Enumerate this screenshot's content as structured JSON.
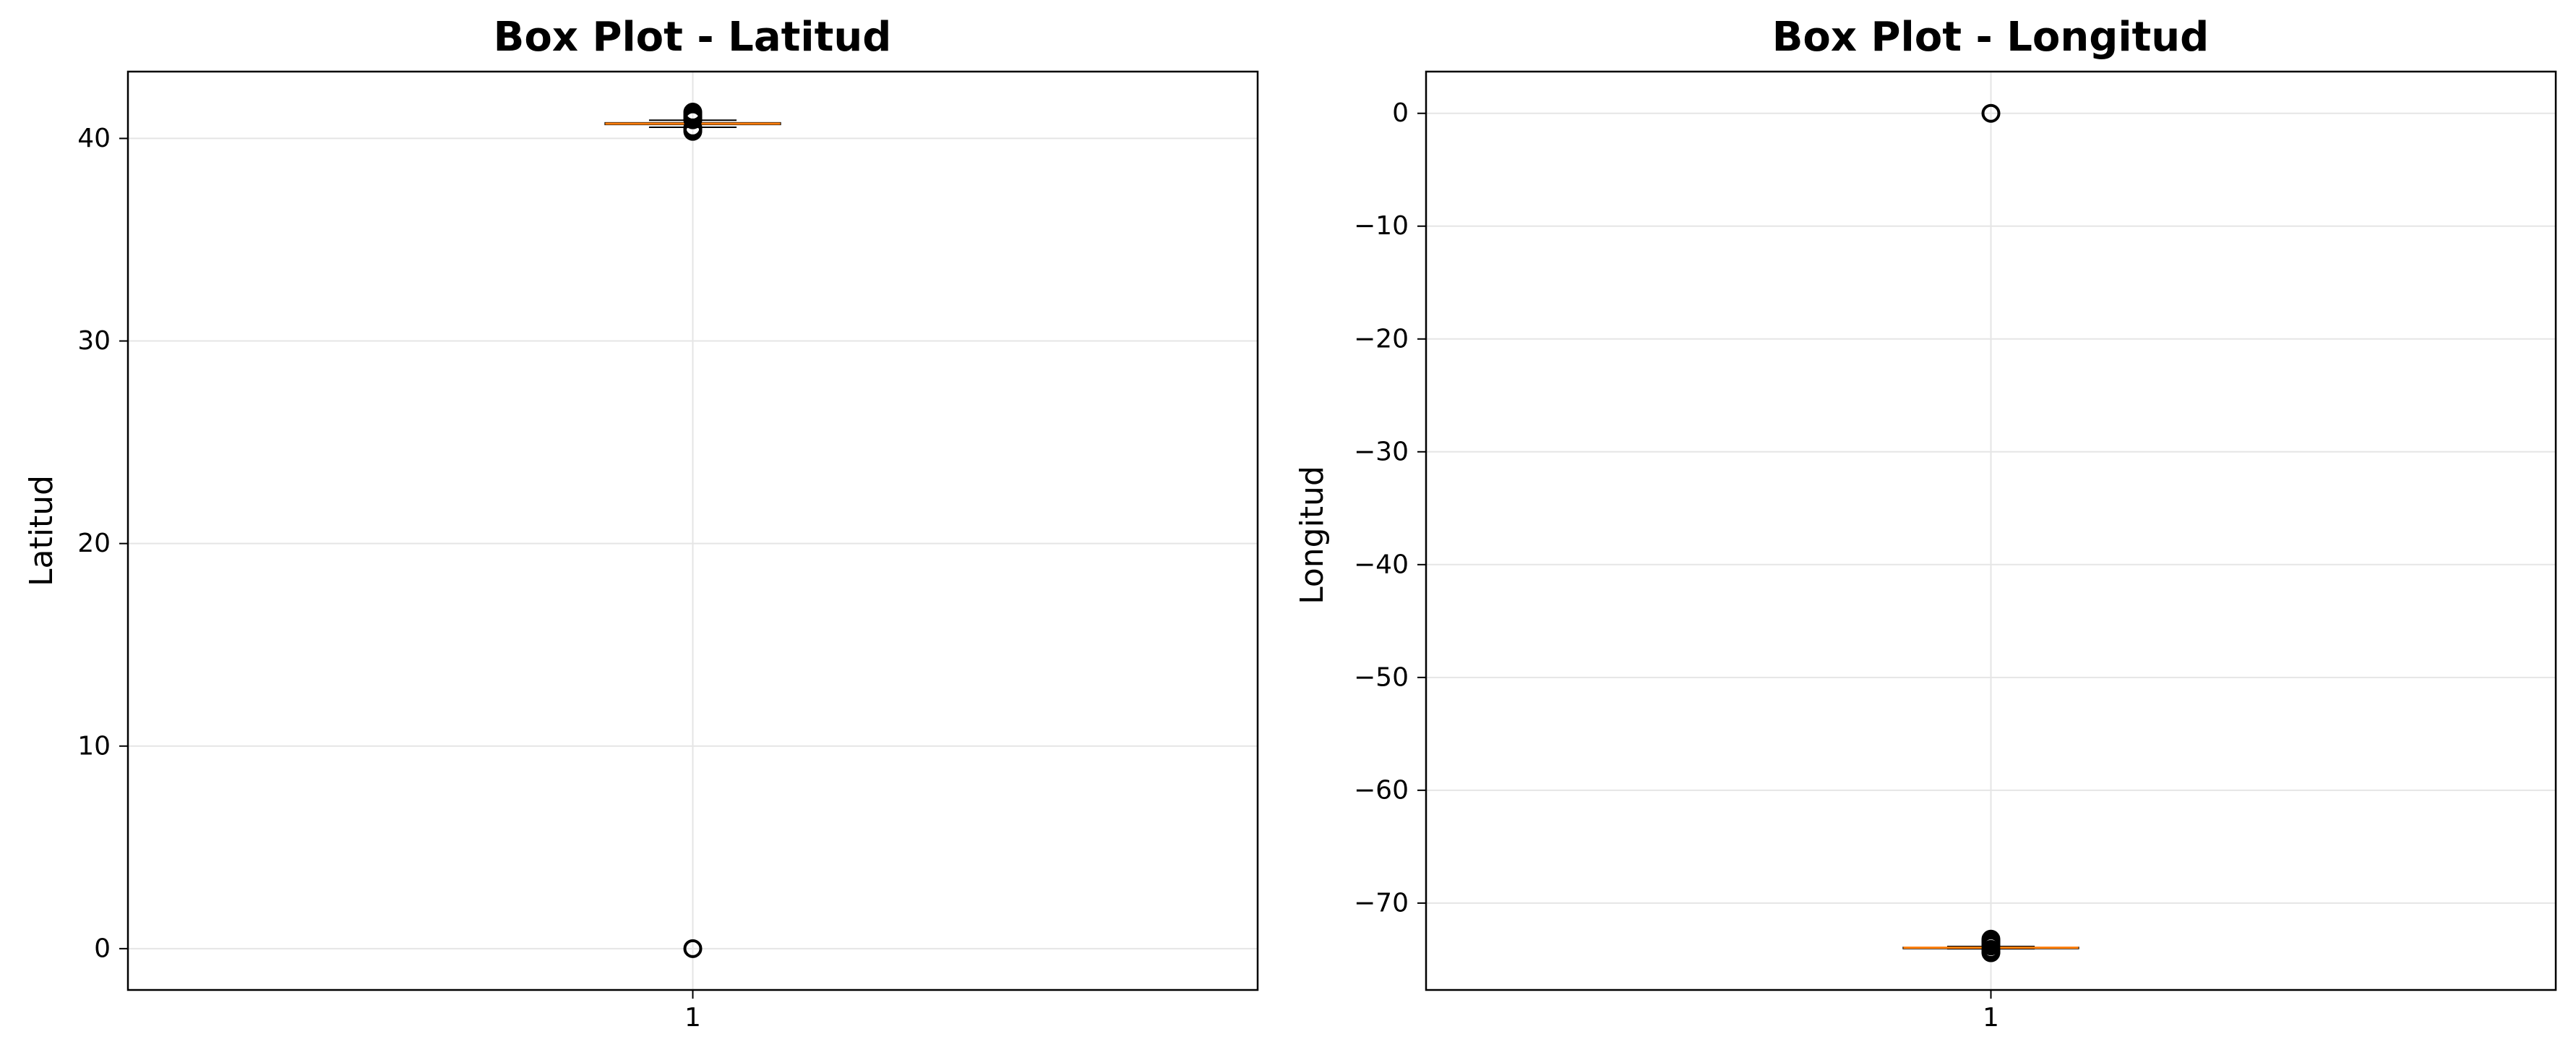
{
  "chart_data": [
    {
      "type": "box",
      "title": "Box Plot - Latitud",
      "xlabel": "",
      "ylabel": "Latitud",
      "categories": [
        "1"
      ],
      "ylim": [
        -2.04,
        43.3
      ],
      "yticks": [
        0,
        10,
        20,
        30,
        40
      ],
      "ytick_labels": [
        "0",
        "10",
        "20",
        "30",
        "40"
      ],
      "grid": true,
      "box": {
        "whisker_low": 40.55,
        "q1": 40.69,
        "median": 40.73,
        "q3": 40.77,
        "whisker_high": 40.9
      },
      "outliers": [
        0,
        40.35,
        40.45,
        40.5,
        40.52,
        40.92,
        40.95,
        41.0,
        41.1,
        41.2,
        41.3
      ],
      "colors": {
        "median": "#ff7f0e",
        "box": "#000000",
        "grid": "#e5e5e5"
      }
    },
    {
      "type": "box",
      "title": "Box Plot - Longitud",
      "xlabel": "",
      "ylabel": "Longitud",
      "categories": [
        "1"
      ],
      "ylim": [
        -77.7,
        3.7
      ],
      "yticks": [
        0,
        -10,
        -20,
        -30,
        -40,
        -50,
        -60,
        -70
      ],
      "ytick_labels": [
        "0",
        "−10",
        "−20",
        "−30",
        "−40",
        "−50",
        "−60",
        "−70"
      ],
      "grid": true,
      "box": {
        "whisker_low": -74.05,
        "q1": -73.99,
        "median": -73.95,
        "q3": -73.93,
        "whisker_high": -73.85
      },
      "outliers": [
        0,
        -73.2,
        -73.35,
        -73.5,
        -73.7,
        -73.8,
        -74.1,
        -74.2,
        -74.3,
        -74.4
      ],
      "colors": {
        "median": "#ff7f0e",
        "box": "#000000",
        "grid": "#e5e5e5"
      }
    }
  ]
}
